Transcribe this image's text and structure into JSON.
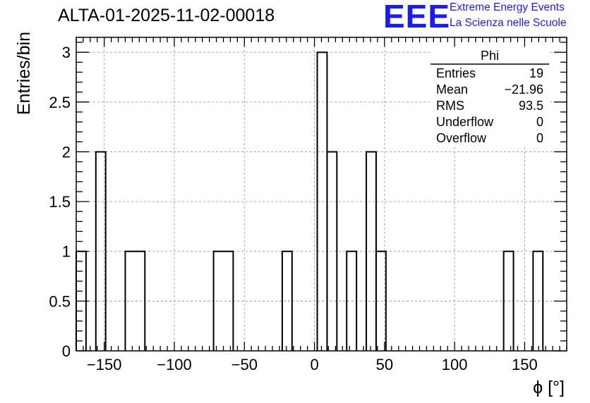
{
  "title": "ALTA-01-2025-11-02-00018",
  "logo": {
    "mark": "EEE",
    "line1": "Extreme Energy Events",
    "line2": "La Scienza nelle Scuole",
    "color": "#1a1aff"
  },
  "stats_box": {
    "name": "Phi",
    "rows": [
      {
        "label": "Entries",
        "value": "19"
      },
      {
        "label": "Mean",
        "value": "−21.96"
      },
      {
        "label": "RMS",
        "value": "93.5"
      },
      {
        "label": "Underflow",
        "value": "0"
      },
      {
        "label": "Overflow",
        "value": "0"
      }
    ]
  },
  "chart_data": {
    "type": "histogram",
    "xlabel": "ϕ [°]",
    "ylabel": "Entries/bin",
    "xlim": [
      -170,
      180
    ],
    "ylim": [
      0,
      3.15
    ],
    "bin_width": 7,
    "bin_start": -170,
    "bins": [
      {
        "x0": -170,
        "x1": -163,
        "y": 1
      },
      {
        "x0": -156,
        "x1": -149,
        "y": 2
      },
      {
        "x0": -135,
        "x1": -121,
        "y": 1
      },
      {
        "x0": -72,
        "x1": -58,
        "y": 1
      },
      {
        "x0": -23,
        "x1": -16,
        "y": 1
      },
      {
        "x0": 2,
        "x1": 9,
        "y": 3
      },
      {
        "x0": 9,
        "x1": 16,
        "y": 2
      },
      {
        "x0": 23,
        "x1": 30,
        "y": 1
      },
      {
        "x0": 37,
        "x1": 44,
        "y": 2
      },
      {
        "x0": 44,
        "x1": 51,
        "y": 1
      },
      {
        "x0": 135,
        "x1": 142,
        "y": 1
      },
      {
        "x0": 156,
        "x1": 163,
        "y": 1
      }
    ],
    "x_ticks": [
      -150,
      -100,
      -50,
      0,
      50,
      100,
      150
    ],
    "x_tick_labels": [
      "−150",
      "−100",
      "−50",
      "0",
      "50",
      "100",
      "150"
    ],
    "y_ticks": [
      0,
      0.5,
      1,
      1.5,
      2,
      2.5,
      3
    ],
    "y_tick_labels": [
      "0",
      "0.5",
      "1",
      "1.5",
      "2",
      "2.5",
      "3"
    ],
    "grid": true,
    "line_color": "#000000",
    "grid_color": "#9a9a9a"
  }
}
